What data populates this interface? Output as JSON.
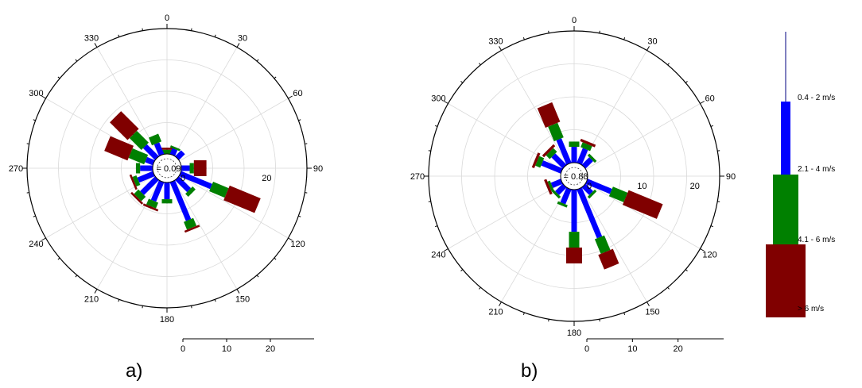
{
  "chart_data": [
    {
      "type": "windrose",
      "panel_label": "a)",
      "direction_ticks": [
        "0",
        "30",
        "60",
        "90",
        "120",
        "150",
        "180",
        "210",
        "240",
        "270",
        "300",
        "330"
      ],
      "radial_ticks": [
        "0",
        "20"
      ],
      "scale_ticks": [
        "0",
        "10",
        "20"
      ],
      "calm_label": "= 0.09",
      "radial_max": 30,
      "speed_bins": [
        "0.4 - 2 m/s",
        "2.1 - 4 m/s",
        "4.1 - 6 m/s",
        "> 6 m/s"
      ],
      "petals": [
        {
          "direction": 0,
          "values": [
            0,
            1,
            0.5,
            0
          ]
        },
        {
          "direction": 22.5,
          "values": [
            1.5,
            0.5,
            0,
            0
          ]
        },
        {
          "direction": 45,
          "values": [
            2,
            0,
            0,
            0
          ]
        },
        {
          "direction": 67.5,
          "values": [
            0,
            0,
            0,
            0
          ]
        },
        {
          "direction": 90,
          "values": [
            2,
            1,
            3,
            0
          ]
        },
        {
          "direction": 112.5,
          "values": [
            8,
            4,
            8,
            0
          ]
        },
        {
          "direction": 135,
          "values": [
            4,
            1,
            0,
            0
          ]
        },
        {
          "direction": 157.5,
          "values": [
            10,
            2,
            0.5,
            0
          ]
        },
        {
          "direction": 180,
          "values": [
            4,
            1,
            0,
            0
          ]
        },
        {
          "direction": 202.5,
          "values": [
            5,
            1.5,
            0.5,
            0
          ]
        },
        {
          "direction": 225,
          "values": [
            5,
            1.5,
            0.5,
            0
          ]
        },
        {
          "direction": 247.5,
          "values": [
            4,
            1,
            0.5,
            0
          ]
        },
        {
          "direction": 270,
          "values": [
            3,
            1,
            0,
            0
          ]
        },
        {
          "direction": 292.5,
          "values": [
            2,
            4,
            6,
            0
          ]
        },
        {
          "direction": 315,
          "values": [
            4,
            4,
            6,
            0
          ]
        },
        {
          "direction": 337.5,
          "values": [
            3,
            2,
            0,
            0
          ]
        }
      ]
    },
    {
      "type": "windrose",
      "panel_label": "b)",
      "direction_ticks": [
        "0",
        "30",
        "60",
        "90",
        "120",
        "150",
        "180",
        "210",
        "240",
        "270",
        "300",
        "330"
      ],
      "radial_ticks": [
        "0",
        "10",
        "20"
      ],
      "scale_ticks": [
        "0",
        "10",
        "20"
      ],
      "calm_label": "= 0.88",
      "radial_max": 25,
      "speed_bins": [
        "0.4 - 2 m/s",
        "2.1 - 4 m/s",
        "4.1 - 6 m/s",
        "> 6 m/s"
      ],
      "petals": [
        {
          "direction": 0,
          "values": [
            3,
            1,
            0,
            0
          ]
        },
        {
          "direction": 22.5,
          "values": [
            3,
            1,
            0.5,
            0
          ]
        },
        {
          "direction": 45,
          "values": [
            2,
            0.5,
            0,
            0
          ]
        },
        {
          "direction": 67.5,
          "values": [
            0,
            0,
            0,
            0
          ]
        },
        {
          "direction": 90,
          "values": [
            0,
            0,
            0,
            0
          ]
        },
        {
          "direction": 112.5,
          "values": [
            5,
            3,
            7,
            0
          ]
        },
        {
          "direction": 135,
          "values": [
            2,
            0.5,
            0,
            0
          ]
        },
        {
          "direction": 157.5,
          "values": [
            10,
            3,
            3,
            0
          ]
        },
        {
          "direction": 180,
          "values": [
            8,
            3,
            3,
            0
          ]
        },
        {
          "direction": 202.5,
          "values": [
            3,
            0.5,
            0,
            0
          ]
        },
        {
          "direction": 225,
          "values": [
            2,
            0.5,
            0,
            0
          ]
        },
        {
          "direction": 247.5,
          "values": [
            2,
            0.5,
            0.5,
            0
          ]
        },
        {
          "direction": 270,
          "values": [
            0,
            0,
            0,
            0
          ]
        },
        {
          "direction": 292.5,
          "values": [
            4,
            1,
            0.5,
            0
          ]
        },
        {
          "direction": 315,
          "values": [
            3,
            1,
            0.5,
            0
          ]
        },
        {
          "direction": 337.5,
          "values": [
            5,
            3,
            4,
            0
          ]
        }
      ]
    }
  ],
  "legend": {
    "items": [
      {
        "label": "0.4 - 2 m/s",
        "color": "#0000ff"
      },
      {
        "label": "2.1 - 4 m/s",
        "color": "#008000"
      },
      {
        "label": "4.1 - 6 m/s",
        "color": "#800000"
      },
      {
        "label": "> 6 m/s",
        "color": "#800000"
      }
    ]
  },
  "colors": {
    "bin1": "#0000ff",
    "bin2": "#008000",
    "bin3": "#800000",
    "stem": "#000080",
    "grid": "#d9d9d9",
    "axis": "#000000"
  }
}
